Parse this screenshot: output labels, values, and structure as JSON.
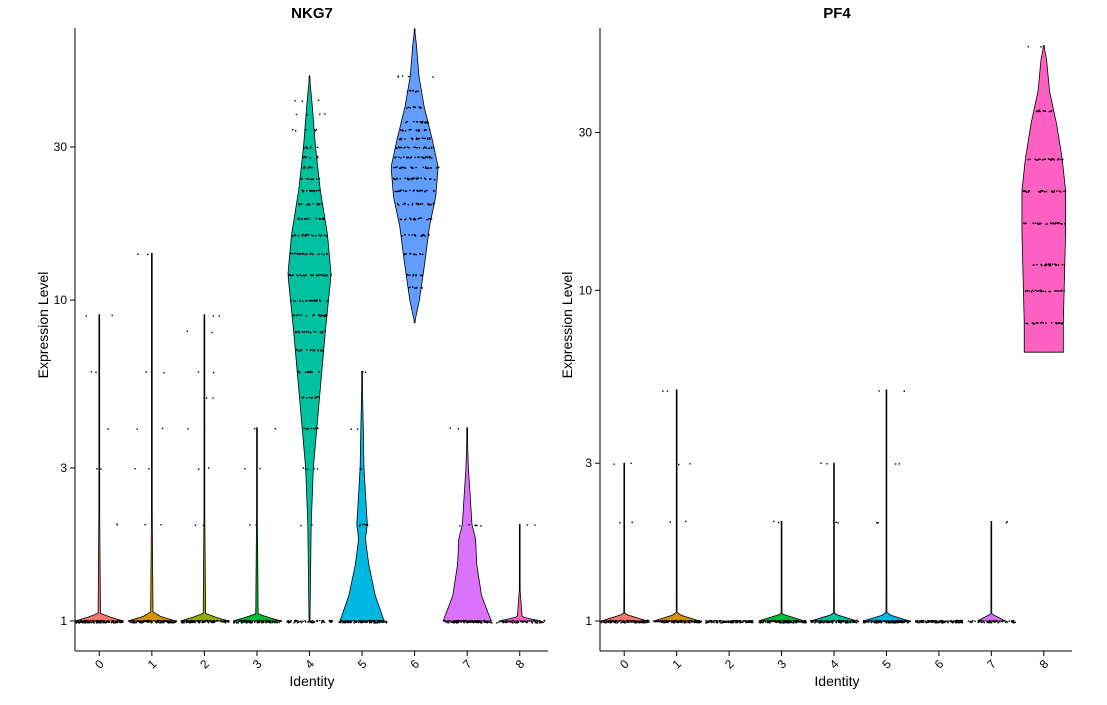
{
  "chart_data": [
    {
      "type": "violin",
      "title": "NKG7",
      "xlabel": "Identity",
      "ylabel": "Expression Level",
      "categories": [
        "0",
        "1",
        "2",
        "3",
        "4",
        "5",
        "6",
        "7",
        "8"
      ],
      "y_ticks": [
        1,
        3,
        10,
        30
      ],
      "y_scale": "log",
      "ylim": [
        0.9,
        68
      ],
      "colors": [
        "#F8766D",
        "#D39200",
        "#93AA00",
        "#00BA38",
        "#00C19F",
        "#00B9E3",
        "#619CFF",
        "#DB72FB",
        "#FF61C3"
      ],
      "groups": [
        {
          "id": "0",
          "max": 9.0,
          "density": [
            [
              1,
              1.0
            ],
            [
              1.05,
              0.05
            ],
            [
              2,
              0.02
            ],
            [
              3,
              0.01
            ],
            [
              9,
              0.005
            ]
          ],
          "levels": [
            1,
            2,
            3,
            4,
            6,
            9
          ]
        },
        {
          "id": "1",
          "max": 14.0,
          "density": [
            [
              1,
              1.0
            ],
            [
              1.05,
              0.05
            ],
            [
              2,
              0.02
            ],
            [
              3,
              0.01
            ],
            [
              14,
              0.005
            ]
          ],
          "levels": [
            1,
            2,
            3,
            4,
            6,
            14
          ]
        },
        {
          "id": "2",
          "max": 9.0,
          "density": [
            [
              1,
              1.0
            ],
            [
              1.05,
              0.05
            ],
            [
              2,
              0.02
            ],
            [
              3,
              0.01
            ],
            [
              9,
              0.005
            ]
          ],
          "levels": [
            1,
            2,
            3,
            4,
            5,
            6,
            8,
            9
          ]
        },
        {
          "id": "3",
          "max": 4.0,
          "density": [
            [
              1,
              1.0
            ],
            [
              1.05,
              0.05
            ],
            [
              2,
              0.02
            ],
            [
              4,
              0.005
            ]
          ],
          "levels": [
            1,
            2,
            3,
            4
          ]
        },
        {
          "id": "4",
          "max": 50.0,
          "density": [
            [
              1,
              0.02
            ],
            [
              1.5,
              0.05
            ],
            [
              2,
              0.07
            ],
            [
              3,
              0.16
            ],
            [
              5,
              0.42
            ],
            [
              8,
              0.66
            ],
            [
              12,
              0.9
            ],
            [
              16,
              0.75
            ],
            [
              22,
              0.45
            ],
            [
              30,
              0.25
            ],
            [
              40,
              0.12
            ],
            [
              50,
              0.0
            ]
          ],
          "levels": [
            1,
            2,
            3,
            4,
            5,
            6,
            7,
            8,
            9,
            10,
            12,
            14,
            16,
            18,
            20,
            22,
            24,
            26,
            28,
            30,
            34,
            38,
            42
          ]
        },
        {
          "id": "5",
          "max": 6.0,
          "density": [
            [
              1,
              0.92
            ],
            [
              1.2,
              0.55
            ],
            [
              1.5,
              0.28
            ],
            [
              1.8,
              0.14
            ],
            [
              2,
              0.22
            ],
            [
              2.3,
              0.17
            ],
            [
              3,
              0.08
            ],
            [
              4,
              0.05
            ],
            [
              6,
              0.0
            ]
          ],
          "levels": [
            1,
            2,
            3,
            4,
            6
          ]
        },
        {
          "id": "6",
          "max": 70.0,
          "density": [
            [
              8.5,
              0.0
            ],
            [
              10,
              0.2
            ],
            [
              13,
              0.42
            ],
            [
              17,
              0.62
            ],
            [
              21,
              0.88
            ],
            [
              26,
              0.98
            ],
            [
              32,
              0.72
            ],
            [
              40,
              0.4
            ],
            [
              50,
              0.18
            ],
            [
              62,
              0.08
            ],
            [
              70,
              0.0
            ]
          ],
          "levels": [
            11,
            12,
            14,
            16,
            18,
            20,
            22,
            24,
            26,
            28,
            30,
            32,
            34,
            36,
            40,
            45,
            50
          ]
        },
        {
          "id": "7",
          "max": 4.0,
          "density": [
            [
              1,
              1.0
            ],
            [
              1.2,
              0.6
            ],
            [
              1.5,
              0.4
            ],
            [
              1.8,
              0.35
            ],
            [
              2,
              0.2
            ],
            [
              2.5,
              0.12
            ],
            [
              3,
              0.05
            ],
            [
              4,
              0.0
            ]
          ],
          "levels": [
            1,
            2,
            4
          ]
        },
        {
          "id": "8",
          "max": 2.0,
          "density": [
            [
              1,
              0.85
            ],
            [
              1.03,
              0.1
            ],
            [
              1.3,
              0.0
            ],
            [
              2,
              0.0
            ]
          ],
          "levels": [
            1,
            2
          ]
        }
      ]
    },
    {
      "type": "violin",
      "title": "PF4",
      "xlabel": "Identity",
      "ylabel": "Expression Level",
      "categories": [
        "0",
        "1",
        "2",
        "3",
        "4",
        "5",
        "6",
        "7",
        "8"
      ],
      "y_ticks": [
        1,
        3,
        10,
        30
      ],
      "y_scale": "log",
      "ylim": [
        0.9,
        60
      ],
      "colors": [
        "#F8766D",
        "#D39200",
        "#93AA00",
        "#00BA38",
        "#00C19F",
        "#00B9E3",
        "#619CFF",
        "#DB72FB",
        "#FF61C3"
      ],
      "groups": [
        {
          "id": "0",
          "max": 3.0,
          "density": [
            [
              1,
              1.0
            ],
            [
              1.05,
              0.02
            ],
            [
              3,
              0.005
            ]
          ],
          "levels": [
            1,
            2,
            3
          ]
        },
        {
          "id": "1",
          "max": 5.0,
          "density": [
            [
              1,
              1.0
            ],
            [
              1.05,
              0.02
            ],
            [
              5,
              0.005
            ]
          ],
          "levels": [
            1,
            2,
            3,
            5
          ]
        },
        {
          "id": "2",
          "max": 1.0,
          "density": [
            [
              1,
              1.0
            ]
          ],
          "levels": [
            1
          ]
        },
        {
          "id": "3",
          "max": 2.0,
          "density": [
            [
              1,
              1.0
            ],
            [
              1.05,
              0.02
            ],
            [
              2,
              0.005
            ]
          ],
          "levels": [
            1,
            2
          ]
        },
        {
          "id": "4",
          "max": 3.0,
          "density": [
            [
              1,
              1.0
            ],
            [
              1.05,
              0.02
            ],
            [
              3,
              0.005
            ]
          ],
          "levels": [
            1,
            2,
            3
          ]
        },
        {
          "id": "5",
          "max": 5.0,
          "density": [
            [
              1,
              1.0
            ],
            [
              1.05,
              0.02
            ],
            [
              5,
              0.005
            ]
          ],
          "levels": [
            1,
            2,
            3,
            5
          ]
        },
        {
          "id": "6",
          "max": 1.0,
          "density": [
            [
              1,
              1.0
            ]
          ],
          "levels": [
            1
          ]
        },
        {
          "id": "7",
          "max": 2.0,
          "density": [
            [
              1,
              0.6
            ],
            [
              1.05,
              0.02
            ],
            [
              2,
              0.005
            ]
          ],
          "levels": [
            1,
            2
          ]
        },
        {
          "id": "8",
          "max": 55.0,
          "density": [
            [
              6.5,
              0.85
            ],
            [
              8,
              0.85
            ],
            [
              11,
              0.9
            ],
            [
              15,
              0.95
            ],
            [
              20,
              0.95
            ],
            [
              25,
              0.8
            ],
            [
              32,
              0.55
            ],
            [
              40,
              0.25
            ],
            [
              50,
              0.12
            ],
            [
              55,
              0.0
            ]
          ],
          "levels": [
            8,
            10,
            12,
            16,
            20,
            25,
            35,
            55
          ]
        }
      ]
    }
  ]
}
